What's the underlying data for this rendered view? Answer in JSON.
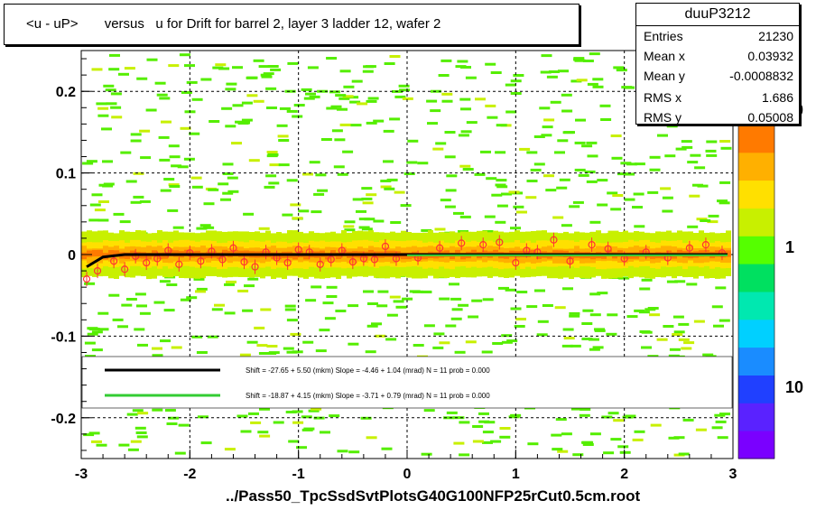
{
  "title": "<u - uP>       versus   u for Drift for barrel 2, layer 3 ladder 12, wafer 2",
  "footer": "../Pass50_TpcSsdSvtPlotsG40G100NFP25rCut0.5cm.root",
  "stats": {
    "name": "duuP3212",
    "rows": [
      {
        "key": "Entries",
        "value": "21230"
      },
      {
        "key": "Mean x",
        "value": "0.03932"
      },
      {
        "key": "Mean y",
        "value": "-0.0008832"
      },
      {
        "key": "RMS x",
        "value": "1.686"
      },
      {
        "key": "RMS y",
        "value": "0.05008"
      }
    ]
  },
  "colors": {
    "fit_black": "#000000",
    "fit_green": "#33cc33",
    "marker": "#ff3333",
    "palette": [
      "#7a00ff",
      "#5a22ff",
      "#2040ff",
      "#1a8cff",
      "#00d0ff",
      "#00e8b0",
      "#00e060",
      "#55ff00",
      "#c8f000",
      "#ffe000",
      "#ffb000",
      "#ff7a00"
    ]
  },
  "chart_data": {
    "type": "heatmap",
    "title": "<u - uP>       versus   u for Drift for barrel 2, layer 3 ladder 12, wafer 2",
    "xlabel": "",
    "ylabel": "",
    "xlim": [
      -3,
      3
    ],
    "ylim": [
      -0.25,
      0.25
    ],
    "xticks": [
      -3,
      -2,
      -1,
      0,
      1,
      2,
      3
    ],
    "yticks": [
      -0.2,
      -0.1,
      0,
      0.1,
      0.2
    ],
    "xtick_labels": [
      "-3",
      "-2",
      "-1",
      "0",
      "1",
      "2",
      "3"
    ],
    "ytick_labels": [
      "-0.2",
      "-0.1",
      "0",
      "0.1",
      "0.2"
    ],
    "grid": true,
    "colorbar_labels": [
      "10",
      "1",
      "10"
    ],
    "legend": {
      "placement": "bottom",
      "entries": [
        {
          "color": "black",
          "text": "Shift =   -27.65 + 5.50 (mkm) Slope =    -4.46 + 1.04 (mrad)  N = 11 prob = 0.000"
        },
        {
          "color": "green",
          "text": "Shift =   -18.87 + 4.15 (mkm) Slope =    -3.71 + 0.79 (mrad)  N = 11 prob = 0.000"
        }
      ]
    },
    "profile_points": {
      "x": [
        -2.95,
        -2.85,
        -2.7,
        -2.6,
        -2.5,
        -2.4,
        -2.3,
        -2.2,
        -2.1,
        -2.0,
        -1.9,
        -1.8,
        -1.7,
        -1.6,
        -1.5,
        -1.4,
        -1.3,
        -1.2,
        -1.1,
        -1.0,
        -0.9,
        -0.8,
        -0.7,
        -0.6,
        -0.5,
        -0.4,
        -0.3,
        -0.2,
        -0.1,
        0.1,
        0.3,
        0.5,
        0.7,
        0.85,
        1.0,
        1.1,
        1.2,
        1.35,
        1.5,
        1.7,
        1.85,
        2.0,
        2.2,
        2.4,
        2.6,
        2.75,
        2.9
      ],
      "y": [
        -0.03,
        -0.02,
        -0.008,
        -0.018,
        -0.002,
        -0.01,
        -0.005,
        0.005,
        -0.012,
        0.002,
        -0.008,
        0.004,
        -0.006,
        0.008,
        -0.009,
        -0.015,
        0.003,
        -0.004,
        -0.01,
        0.006,
        0.003,
        -0.012,
        -0.006,
        0.005,
        -0.009,
        -0.005,
        -0.006,
        0.01,
        -0.005,
        -0.004,
        0.008,
        0.014,
        0.012,
        0.015,
        -0.01,
        0.005,
        0.003,
        0.018,
        -0.008,
        0.012,
        0.007,
        -0.005,
        0.003,
        -0.004,
        0.008,
        0.012,
        0.002
      ]
    },
    "fit_lines": [
      {
        "name": "black",
        "x": [
          -2.95,
          -2.8,
          -2.6,
          2.95
        ],
        "y": [
          -0.015,
          -0.003,
          0.0,
          0.0
        ]
      },
      {
        "name": "green",
        "x": [
          0.0,
          2.95
        ],
        "y": [
          -0.001,
          -0.001
        ]
      }
    ]
  }
}
